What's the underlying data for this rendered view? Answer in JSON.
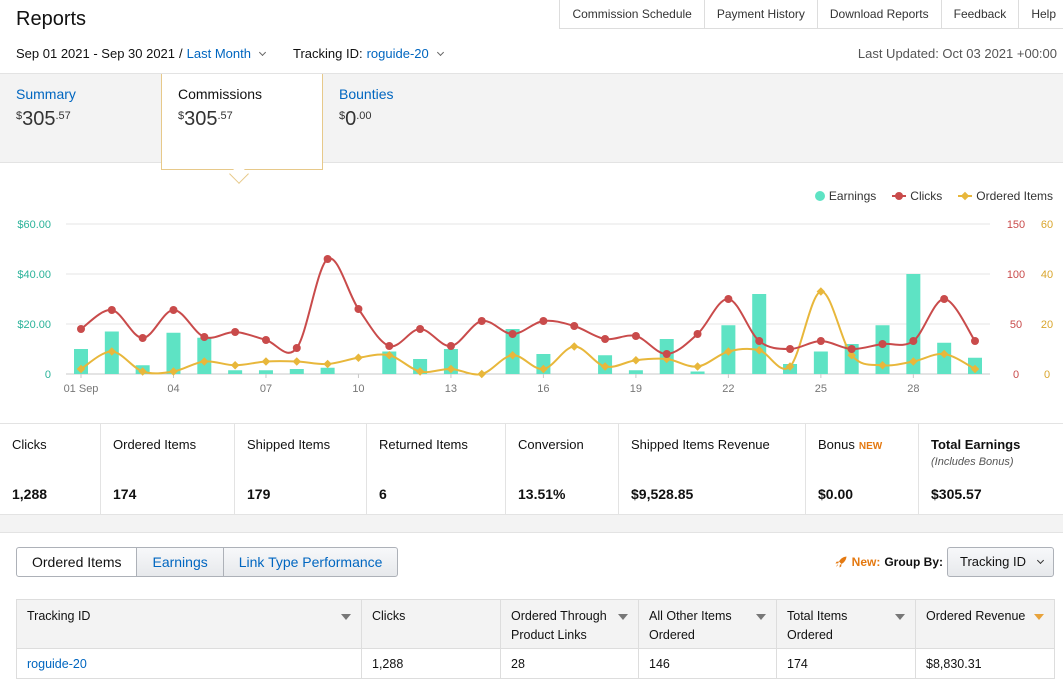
{
  "header": {
    "title": "Reports",
    "nav": [
      "Commission Schedule",
      "Payment History",
      "Download Reports",
      "Feedback",
      "Help"
    ],
    "date_range": "Sep 01 2021 - Sep 30 2021",
    "date_sep": "/",
    "date_preset": "Last Month",
    "tracking_label": "Tracking ID:",
    "tracking_value": "roguide-20",
    "last_updated": "Last Updated: Oct 03 2021 +00:00"
  },
  "tabs": [
    {
      "label": "Summary",
      "currency": "$",
      "whole": "305",
      "cents": ".57"
    },
    {
      "label": "Commissions",
      "currency": "$",
      "whole": "305",
      "cents": ".57"
    },
    {
      "label": "Bounties",
      "currency": "$",
      "whole": "0",
      "cents": ".00"
    }
  ],
  "chart_data": {
    "type": "bar",
    "x_tick_labels": [
      "01 Sep",
      "04",
      "07",
      "10",
      "13",
      "16",
      "19",
      "22",
      "25",
      "28"
    ],
    "x_tick_days": [
      1,
      4,
      7,
      10,
      13,
      16,
      19,
      22,
      25,
      28
    ],
    "days": [
      1,
      2,
      3,
      4,
      5,
      6,
      7,
      8,
      9,
      10,
      11,
      12,
      13,
      14,
      15,
      16,
      17,
      18,
      19,
      20,
      21,
      22,
      23,
      24,
      25,
      26,
      27,
      28,
      29,
      30
    ],
    "y_left": {
      "ticks": [
        "0",
        "$20.00",
        "$40.00",
        "$60.00"
      ],
      "range": [
        0,
        60
      ],
      "color": "#2bb39a"
    },
    "y_right_clicks": {
      "ticks": [
        "0",
        "50",
        "100",
        "150"
      ],
      "range": [
        0,
        150
      ],
      "color": "#c94b4b"
    },
    "y_right_items": {
      "ticks": [
        "0",
        "20",
        "40",
        "60"
      ],
      "range": [
        0,
        60
      ],
      "color": "#d9a52c"
    },
    "legend": [
      "Earnings",
      "Clicks",
      "Ordered Items"
    ],
    "series": [
      {
        "name": "Earnings",
        "type": "bar",
        "axis": "left",
        "color": "#5ee3c4",
        "values": [
          10,
          17,
          3.5,
          16.5,
          14.5,
          1.5,
          1.5,
          2,
          2.5,
          0,
          9,
          6,
          10,
          0,
          18,
          8,
          0,
          7.5,
          1.5,
          14,
          1,
          19.5,
          32,
          4,
          9,
          12,
          19.5,
          40,
          12.5,
          6.5
        ]
      },
      {
        "name": "Clicks",
        "type": "line",
        "axis": "right_clicks",
        "color": "#c94b4b",
        "values": [
          45,
          64,
          36,
          64,
          37,
          42,
          34,
          26,
          115,
          65,
          28,
          45,
          28,
          53,
          40,
          53,
          48,
          35,
          38,
          20,
          40,
          75,
          33,
          25,
          33,
          25,
          30,
          33,
          75,
          33
        ]
      },
      {
        "name": "Ordered Items",
        "type": "line",
        "axis": "right_items",
        "color": "#e8b73b",
        "values": [
          2,
          9,
          1,
          1,
          5,
          3.5,
          5,
          5,
          4,
          6.5,
          7.5,
          1,
          2,
          0,
          7.5,
          2,
          11,
          3,
          5.5,
          6,
          3,
          9,
          9.5,
          3,
          33,
          7.5,
          3.5,
          5,
          8,
          2
        ]
      }
    ]
  },
  "stats": [
    {
      "label": "Clicks",
      "value": "1,288"
    },
    {
      "label": "Ordered Items",
      "value": "174"
    },
    {
      "label": "Shipped Items",
      "value": "179"
    },
    {
      "label": "Returned Items",
      "value": "6"
    },
    {
      "label": "Conversion",
      "value": "13.51%"
    },
    {
      "label": "Shipped Items Revenue",
      "value": "$9,528.85"
    },
    {
      "label": "Bonus",
      "badge": "NEW",
      "value": "$0.00"
    },
    {
      "label": "Total Earnings",
      "sub": "(Includes Bonus)",
      "value": "$305.57"
    }
  ],
  "lower": {
    "segments": [
      "Ordered Items",
      "Earnings",
      "Link Type Performance"
    ],
    "new_label": "New:",
    "group_by_label": "Group By:",
    "group_by_value": "Tracking ID",
    "table": {
      "columns": [
        "Tracking ID",
        "Clicks",
        "Ordered Through Product Links",
        "All Other Items Ordered",
        "Total Items Ordered",
        "Ordered Revenue"
      ],
      "rows": [
        [
          "roguide-20",
          "1,288",
          "28",
          "146",
          "174",
          "$8,830.31"
        ]
      ]
    }
  }
}
